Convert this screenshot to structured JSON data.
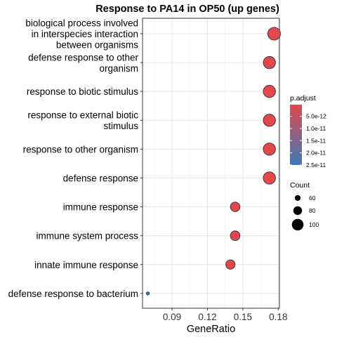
{
  "chart_data": {
    "type": "scatter",
    "title": "Response to PA14 in OP50 (up genes)",
    "xlabel": "GeneRatio",
    "ylabel": "",
    "xlim": [
      0.065,
      0.181
    ],
    "xticks": [
      0.09,
      0.12,
      0.15,
      0.18
    ],
    "xtick_labels": [
      "0.09",
      "0.12",
      "0.15",
      "0.18"
    ],
    "grid": true,
    "legend_position": "right",
    "colors": {
      "low": "#e0484d",
      "high": "#3d7ab8"
    },
    "points": [
      {
        "label": [
          "biological process involved",
          "in interspecies interaction",
          "between organisms"
        ],
        "x": 0.1765,
        "count": 107,
        "p_adjust": 2e-13
      },
      {
        "label": [
          "defense response to other",
          "organism"
        ],
        "x": 0.1725,
        "count": 104,
        "p_adjust": 2e-13
      },
      {
        "label": [
          "response to biotic stimulus"
        ],
        "x": 0.1725,
        "count": 104,
        "p_adjust": 2e-13
      },
      {
        "label": [
          "response to external biotic",
          "stimulus"
        ],
        "x": 0.1725,
        "count": 104,
        "p_adjust": 2e-13
      },
      {
        "label": [
          "response to other organism"
        ],
        "x": 0.1725,
        "count": 104,
        "p_adjust": 2e-13
      },
      {
        "label": [
          "defense response"
        ],
        "x": 0.1725,
        "count": 104,
        "p_adjust": 2e-13
      },
      {
        "label": [
          "immune response"
        ],
        "x": 0.1435,
        "count": 86,
        "p_adjust": 2e-13
      },
      {
        "label": [
          "immune system process"
        ],
        "x": 0.1435,
        "count": 86,
        "p_adjust": 2e-13
      },
      {
        "label": [
          "innate immune response"
        ],
        "x": 0.1395,
        "count": 84,
        "p_adjust": 2e-13
      },
      {
        "label": [
          "defense response to bacterium"
        ],
        "x": 0.0695,
        "count": 42,
        "p_adjust": 2.5e-11
      }
    ],
    "legend_color": {
      "title": "p.adjust",
      "ticks": [
        {
          "value": 5e-12,
          "label": "5.0e-12"
        },
        {
          "value": 1e-11,
          "label": "1.0e-11"
        },
        {
          "value": 1.5e-11,
          "label": "1.5e-11"
        },
        {
          "value": 2e-11,
          "label": "2.0e-11"
        },
        {
          "value": 2.5e-11,
          "label": "2.5e-11"
        }
      ],
      "range": [
        2e-13,
        2.5e-11
      ]
    },
    "legend_size": {
      "title": "Count",
      "entries": [
        {
          "value": 60,
          "label": "60"
        },
        {
          "value": 80,
          "label": "80"
        },
        {
          "value": 100,
          "label": "100"
        }
      ]
    }
  }
}
